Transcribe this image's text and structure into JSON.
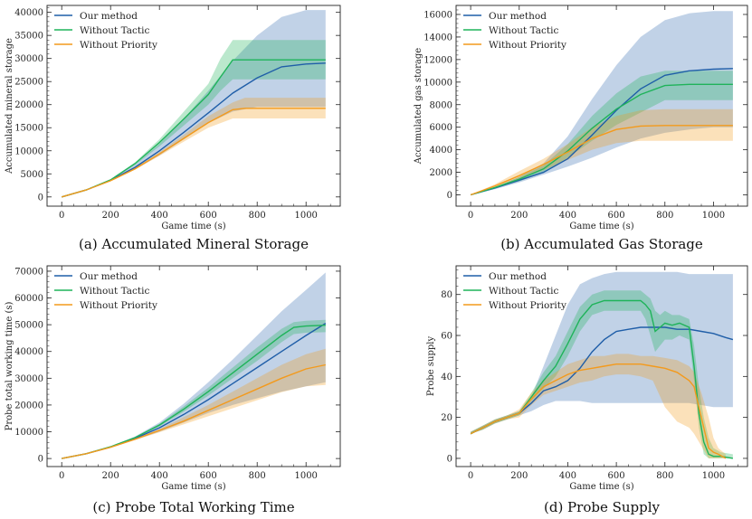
{
  "chart_data": [
    {
      "id": "a",
      "type": "line",
      "caption": "(a) Accumulated Mineral Storage",
      "xlabel": "Game time (s)",
      "ylabel": "Accumulated mineral storage",
      "xlim": [
        -60,
        1140
      ],
      "ylim": [
        -2000,
        41500
      ],
      "xticks": [
        0,
        200,
        400,
        600,
        800,
        1000
      ],
      "yticks": [
        0,
        5000,
        10000,
        15000,
        20000,
        25000,
        30000,
        35000,
        40000
      ],
      "legend": "top-left",
      "series": [
        {
          "name": "Our method",
          "color": "#1f5ea8",
          "x": [
            0,
            100,
            200,
            300,
            400,
            500,
            600,
            700,
            800,
            900,
            1000,
            1080
          ],
          "y": [
            0,
            1500,
            3600,
            6400,
            10000,
            14000,
            18200,
            22500,
            25800,
            28200,
            28800,
            29000
          ],
          "band_upper": [
            0,
            1500,
            3700,
            7000,
            11500,
            17000,
            23000,
            29500,
            35000,
            39000,
            40500,
            40500
          ],
          "band_lower": [
            0,
            1500,
            3500,
            6000,
            9000,
            12500,
            16000,
            18500,
            19500,
            19500,
            19500,
            19500
          ]
        },
        {
          "name": "Without Tactic",
          "color": "#1fb35a",
          "x": [
            0,
            100,
            200,
            300,
            400,
            500,
            600,
            650,
            700,
            750,
            800,
            900,
            1000,
            1080
          ],
          "y": [
            0,
            1500,
            3700,
            7200,
            11800,
            16900,
            22200,
            26000,
            29700,
            29700,
            29700,
            29700,
            29700,
            29700
          ],
          "band_upper": [
            0,
            1500,
            3800,
            7500,
            12500,
            18500,
            24500,
            30000,
            34000,
            34000,
            34000,
            34000,
            34000,
            34000
          ],
          "band_lower": [
            0,
            1500,
            3600,
            6900,
            11000,
            15500,
            20000,
            23000,
            25500,
            25500,
            25500,
            25500,
            25500,
            25500
          ]
        },
        {
          "name": "Without Priority",
          "color": "#f39a1c",
          "x": [
            0,
            100,
            200,
            300,
            400,
            500,
            600,
            700,
            750,
            800,
            900,
            1000,
            1080
          ],
          "y": [
            0,
            1500,
            3500,
            6100,
            9300,
            12700,
            16100,
            18900,
            19200,
            19200,
            19200,
            19200,
            19200
          ],
          "band_upper": [
            0,
            1500,
            3600,
            6300,
            9700,
            13500,
            17500,
            20500,
            21500,
            21500,
            21500,
            21500,
            21500
          ],
          "band_lower": [
            0,
            1500,
            3400,
            5900,
            8900,
            12000,
            15000,
            17000,
            17000,
            17000,
            17000,
            17000,
            17000
          ]
        }
      ]
    },
    {
      "id": "b",
      "type": "line",
      "caption": "(b) Accumulated Gas Storage",
      "xlabel": "Game time (s)",
      "ylabel": "Accumulated gas storage",
      "xlim": [
        -60,
        1140
      ],
      "ylim": [
        -1000,
        16800
      ],
      "xticks": [
        0,
        200,
        400,
        600,
        800,
        1000
      ],
      "yticks": [
        0,
        2000,
        4000,
        6000,
        8000,
        10000,
        12000,
        14000,
        16000
      ],
      "legend": "top-left",
      "series": [
        {
          "name": "Our method",
          "color": "#1f5ea8",
          "x": [
            0,
            100,
            200,
            300,
            400,
            500,
            600,
            700,
            800,
            900,
            1000,
            1080
          ],
          "y": [
            0,
            600,
            1300,
            2000,
            3200,
            5300,
            7500,
            9400,
            10600,
            11000,
            11150,
            11200
          ],
          "band_upper": [
            0,
            700,
            1600,
            2800,
            5200,
            8500,
            11500,
            14000,
            15500,
            16100,
            16300,
            16300
          ],
          "band_lower": [
            0,
            500,
            1100,
            1800,
            2500,
            3300,
            4200,
            5000,
            5500,
            5800,
            6000,
            6000
          ]
        },
        {
          "name": "Without Tactic",
          "color": "#1fb35a",
          "x": [
            0,
            100,
            200,
            300,
            400,
            500,
            600,
            700,
            800,
            900,
            1000,
            1080
          ],
          "y": [
            0,
            650,
            1400,
            2300,
            3900,
            5900,
            7600,
            8900,
            9700,
            9800,
            9800,
            9800
          ],
          "band_upper": [
            0,
            700,
            1600,
            2600,
            4500,
            7000,
            9000,
            10500,
            11000,
            11000,
            11000,
            11000
          ],
          "band_lower": [
            0,
            600,
            1200,
            2000,
            3300,
            4800,
            6200,
            7300,
            8400,
            8400,
            8400,
            8400
          ]
        },
        {
          "name": "Without Priority",
          "color": "#f39a1c",
          "x": [
            0,
            100,
            200,
            300,
            400,
            500,
            600,
            700,
            800,
            900,
            1000,
            1080
          ],
          "y": [
            0,
            800,
            1700,
            2700,
            3800,
            5000,
            5800,
            6100,
            6150,
            6150,
            6150,
            6150
          ],
          "band_upper": [
            0,
            950,
            2100,
            3200,
            4500,
            6000,
            7000,
            7500,
            7600,
            7600,
            7600,
            7600
          ],
          "band_lower": [
            0,
            650,
            1400,
            2200,
            3100,
            4000,
            4600,
            4800,
            4800,
            4800,
            4800,
            4800
          ]
        }
      ]
    },
    {
      "id": "c",
      "type": "line",
      "caption": "(c) Probe Total Working Time",
      "xlabel": "Game time (s)",
      "ylabel": "Probe total working time (s)",
      "xlim": [
        -60,
        1140
      ],
      "ylim": [
        -3000,
        72000
      ],
      "xticks": [
        0,
        200,
        400,
        600,
        800,
        1000
      ],
      "yticks": [
        0,
        10000,
        20000,
        30000,
        40000,
        50000,
        60000,
        70000
      ],
      "legend": "top-left",
      "series": [
        {
          "name": "Our method",
          "color": "#1f5ea8",
          "x": [
            0,
            100,
            200,
            300,
            400,
            500,
            600,
            700,
            800,
            900,
            1000,
            1080
          ],
          "y": [
            0,
            1800,
            4300,
            7500,
            11500,
            16500,
            22000,
            28000,
            34000,
            40000,
            46000,
            50500
          ],
          "band_upper": [
            0,
            1800,
            4500,
            8200,
            13500,
            20500,
            28500,
            37000,
            46000,
            55000,
            63000,
            69500
          ],
          "band_lower": [
            0,
            1800,
            4100,
            7000,
            10000,
            13500,
            17000,
            20000,
            22500,
            25000,
            27000,
            28500
          ]
        },
        {
          "name": "Without Tactic",
          "color": "#1fb35a",
          "x": [
            0,
            100,
            200,
            300,
            400,
            500,
            600,
            700,
            800,
            900,
            950,
            1000,
            1080
          ],
          "y": [
            0,
            1800,
            4400,
            7800,
            12500,
            18500,
            25000,
            32000,
            39000,
            46000,
            49000,
            49500,
            49800
          ],
          "band_upper": [
            0,
            1800,
            4500,
            8000,
            13000,
            19500,
            26500,
            34000,
            41500,
            48500,
            51000,
            51500,
            51800
          ],
          "band_lower": [
            0,
            1800,
            4300,
            7600,
            12000,
            17500,
            23500,
            30000,
            36500,
            43500,
            46500,
            47000,
            47200
          ]
        },
        {
          "name": "Without Priority",
          "color": "#f39a1c",
          "x": [
            0,
            100,
            200,
            300,
            400,
            500,
            600,
            700,
            800,
            900,
            1000,
            1080
          ],
          "y": [
            0,
            1800,
            4200,
            7200,
            10500,
            14000,
            18000,
            22000,
            26000,
            30000,
            33500,
            35000
          ],
          "band_upper": [
            0,
            1800,
            4300,
            7500,
            11000,
            15500,
            20000,
            25000,
            30000,
            35000,
            39000,
            41000
          ],
          "band_lower": [
            0,
            1800,
            4100,
            6900,
            9800,
            12800,
            15800,
            18800,
            21800,
            24800,
            27000,
            27500
          ]
        }
      ]
    },
    {
      "id": "d",
      "type": "line",
      "caption": "(d) Probe Supply",
      "xlabel": "Game time (s)",
      "ylabel": "Probe supply",
      "xlim": [
        -60,
        1140
      ],
      "ylim": [
        -4,
        94
      ],
      "xticks": [
        0,
        200,
        400,
        600,
        800,
        1000
      ],
      "yticks": [
        0,
        20,
        40,
        60,
        80
      ],
      "legend": "top-left",
      "series": [
        {
          "name": "Our method",
          "color": "#1f5ea8",
          "x": [
            0,
            50,
            100,
            150,
            200,
            250,
            300,
            350,
            400,
            450,
            500,
            550,
            600,
            650,
            700,
            750,
            800,
            850,
            900,
            950,
            1000,
            1050,
            1080
          ],
          "y": [
            12,
            15,
            18,
            20,
            22,
            27,
            33,
            35,
            38,
            44,
            52,
            58,
            62,
            63,
            64,
            64,
            64,
            63,
            63,
            62,
            61,
            59,
            58
          ],
          "band_upper": [
            13,
            16,
            19,
            21,
            23,
            30,
            45,
            60,
            75,
            85,
            88,
            90,
            91,
            91,
            91,
            91,
            91,
            91,
            90,
            90,
            90,
            90,
            90
          ],
          "band_lower": [
            12,
            14,
            17,
            19,
            21,
            23,
            26,
            28,
            28,
            28,
            27,
            27,
            27,
            27,
            27,
            27,
            27,
            27,
            27,
            26,
            25,
            25,
            25
          ]
        },
        {
          "name": "Without Tactic",
          "color": "#1fb35a",
          "x": [
            0,
            50,
            100,
            150,
            200,
            250,
            300,
            350,
            400,
            450,
            500,
            550,
            600,
            650,
            700,
            720,
            740,
            760,
            780,
            800,
            830,
            860,
            900,
            920,
            940,
            960,
            980,
            1000,
            1030,
            1080
          ],
          "y": [
            12,
            15,
            18,
            20,
            22,
            30,
            38,
            45,
            56,
            68,
            75,
            77,
            77,
            77,
            77,
            75,
            72,
            62,
            64,
            66,
            65,
            66,
            64,
            45,
            22,
            8,
            2,
            1,
            1,
            0
          ],
          "band_upper": [
            13,
            16,
            19,
            21,
            23,
            32,
            42,
            50,
            62,
            74,
            80,
            82,
            82,
            82,
            82,
            80,
            78,
            72,
            70,
            72,
            70,
            70,
            68,
            55,
            35,
            20,
            10,
            5,
            3,
            2
          ],
          "band_lower": [
            12,
            14,
            17,
            19,
            21,
            28,
            34,
            40,
            50,
            62,
            70,
            72,
            72,
            72,
            72,
            68,
            60,
            52,
            55,
            58,
            58,
            60,
            58,
            38,
            15,
            2,
            0,
            0,
            0,
            0
          ]
        },
        {
          "name": "Without Priority",
          "color": "#f39a1c",
          "x": [
            0,
            50,
            100,
            150,
            200,
            250,
            300,
            350,
            400,
            450,
            500,
            550,
            600,
            650,
            700,
            750,
            800,
            850,
            900,
            920,
            950,
            980,
            1000,
            1020,
            1050
          ],
          "y": [
            12,
            15,
            18,
            20,
            22,
            29,
            35,
            38,
            41,
            43,
            44,
            45,
            46,
            46,
            46,
            45,
            44,
            42,
            38,
            35,
            20,
            5,
            3,
            2,
            0
          ],
          "band_upper": [
            13,
            16,
            19,
            21,
            24,
            32,
            38,
            42,
            46,
            48,
            50,
            50,
            51,
            51,
            50,
            50,
            49,
            48,
            45,
            42,
            32,
            20,
            10,
            5,
            2
          ],
          "band_lower": [
            12,
            14,
            17,
            19,
            20,
            26,
            31,
            33,
            35,
            37,
            38,
            40,
            41,
            41,
            40,
            38,
            25,
            18,
            15,
            12,
            6,
            0,
            0,
            0,
            0
          ]
        }
      ]
    }
  ]
}
